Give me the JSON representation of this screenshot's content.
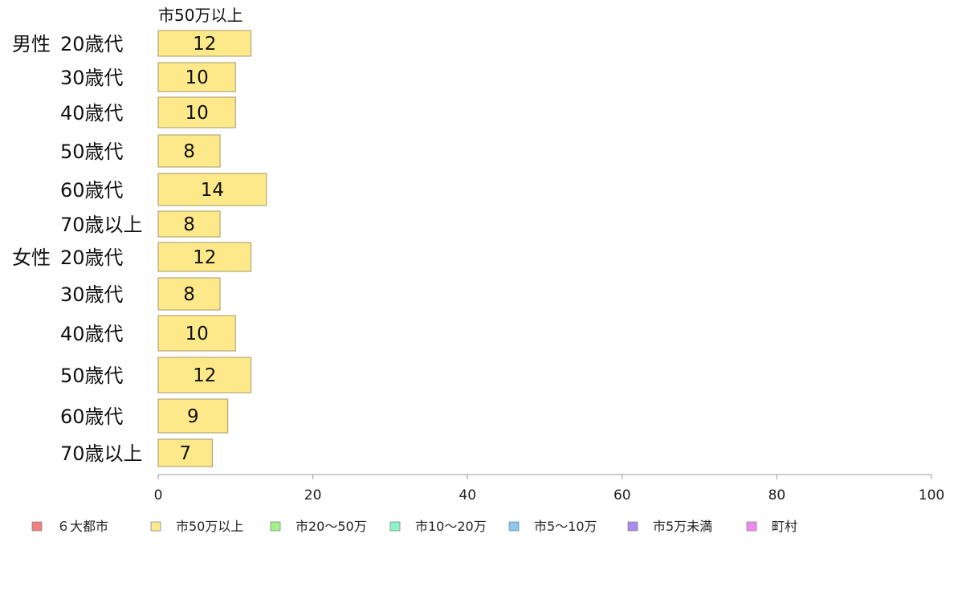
{
  "chart_data": {
    "type": "bar",
    "orientation": "horizontal",
    "series_title": "市50万以上",
    "groups": [
      {
        "label": "男性",
        "categories": [
          "20歳代",
          "30歳代",
          "40歳代",
          "50歳代",
          "60歳代",
          "70歳以上"
        ],
        "values": [
          12,
          10,
          10,
          8,
          14,
          8
        ]
      },
      {
        "label": "女性",
        "categories": [
          "20歳代",
          "30歳代",
          "40歳代",
          "50歳代",
          "60歳代",
          "70歳以上"
        ],
        "values": [
          12,
          8,
          10,
          12,
          9,
          7
        ]
      }
    ],
    "xlim": [
      0,
      100
    ],
    "xticks": [
      0,
      20,
      40,
      60,
      80,
      100
    ],
    "legend": [
      {
        "name": "６大都市",
        "color": "#f08080"
      },
      {
        "name": "市50万以上",
        "color": "#fde98a"
      },
      {
        "name": "市20〜50万",
        "color": "#a2f08a"
      },
      {
        "name": "市10〜20万",
        "color": "#8af5c8"
      },
      {
        "name": "市5〜10万",
        "color": "#8ac8f0"
      },
      {
        "name": "市5万未満",
        "color": "#a88af0"
      },
      {
        "name": "町村",
        "color": "#f08af0"
      }
    ],
    "legend_position": "bottom",
    "bar_color": "#fde98a",
    "bar_stroke": "#a39a6a",
    "grid": false
  }
}
